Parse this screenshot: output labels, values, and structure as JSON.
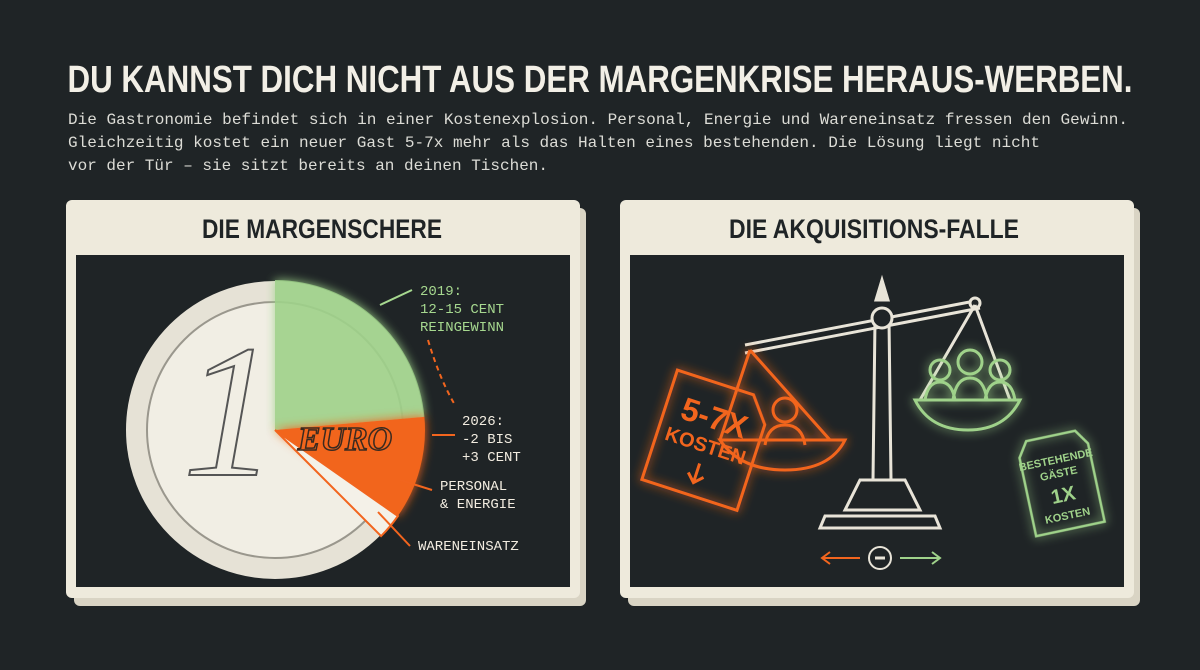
{
  "header": {
    "title": "DU KANNST DICH NICHT AUS DER MARGENKRISE HERAUS-WERBEN.",
    "intro": [
      "Die Gastronomie befindet sich in einer Kostenexplosion. Personal, Energie und Wareneinsatz fressen den Gewinn.",
      "Gleichzeitig kostet ein neuer Gast 5-7x mehr als das Halten eines bestehenden. Die Lösung liegt nicht",
      "vor der Tür – sie sitzt bereits an deinen Tischen."
    ]
  },
  "panels": [
    {
      "title": "DIE MARGENSCHERE",
      "coin": {
        "numeral": "1",
        "word": "EURO"
      },
      "callouts": [
        {
          "lines": [
            "2019:",
            "12-15 CENT",
            "REINGEWINN"
          ]
        },
        {
          "lines": [
            "2026:",
            "-2 BIS",
            "+3 CENT"
          ]
        },
        {
          "lines": [
            "PERSONAL",
            "& ENERGIE"
          ]
        },
        {
          "lines": [
            "WARENEINSATZ"
          ]
        }
      ]
    },
    {
      "title": "DIE AKQUISITIONS-FALLE",
      "new_tag": {
        "lines": [
          "5-7X",
          "KOSTEN"
        ]
      },
      "existing_tag": {
        "lines": [
          "BESTEHENDE",
          "GÄSTE",
          "1X",
          "KOSTEN"
        ]
      }
    }
  ]
}
